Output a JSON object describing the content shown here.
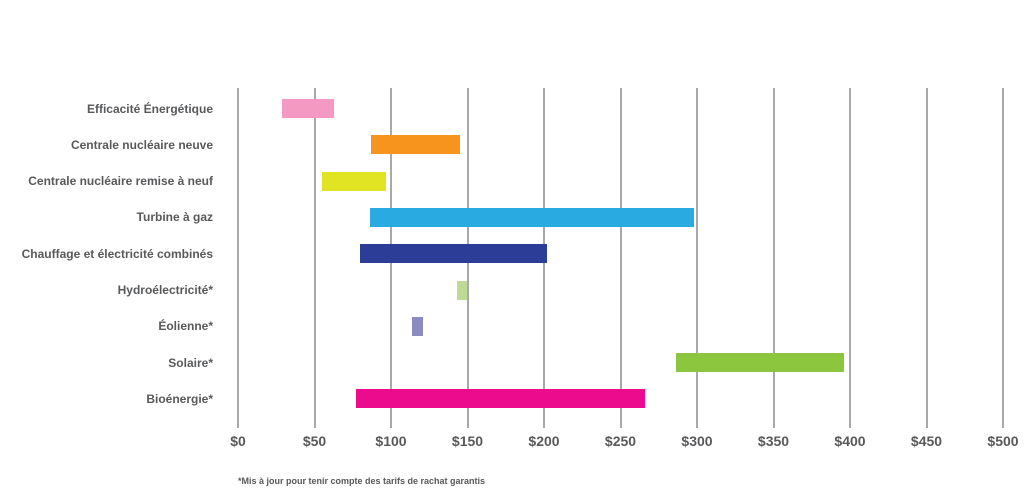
{
  "chart_data": {
    "type": "bar",
    "orientation": "horizontal",
    "title": "",
    "xlabel": "",
    "ylabel": "",
    "x_range": [
      0,
      500
    ],
    "x_tick_step": 50,
    "x_ticks": [
      "$0",
      "$50",
      "$100",
      "$150",
      "$200",
      "$250",
      "$300",
      "$350",
      "$400",
      "$450",
      "$500"
    ],
    "grid": true,
    "legend": "none",
    "footnote": "*Mis à jour pour tenir compte des tarifs de rachat garantis",
    "series": [
      {
        "label": "Efficacité Énergétique",
        "range": [
          29,
          63
        ],
        "color": "#f49ac2"
      },
      {
        "label": "Centrale nucléaire neuve",
        "range": [
          87,
          145
        ],
        "color": "#f7941e"
      },
      {
        "label": "Centrale nucléaire remise à neuf",
        "range": [
          55,
          97
        ],
        "color": "#e1e422"
      },
      {
        "label": "Turbine à gaz",
        "range": [
          86,
          298
        ],
        "color": "#29abe2"
      },
      {
        "label": "Chauffage et électricité combinés",
        "range": [
          80,
          202
        ],
        "color": "#2b3d96"
      },
      {
        "label": "Hydroélectricité*",
        "range": [
          143,
          150
        ],
        "color": "#bedb95"
      },
      {
        "label": "Éolienne*",
        "range": [
          114,
          121
        ],
        "color": "#8d8ac1"
      },
      {
        "label": "Solaire*",
        "range": [
          286,
          396
        ],
        "color": "#8cc63f"
      },
      {
        "label": "Bioénergie*",
        "range": [
          77,
          266
        ],
        "color": "#ec0b8c"
      }
    ]
  },
  "colors": {
    "grid": "#a7a9ac",
    "text": "#58595b",
    "background": "#ffffff"
  }
}
